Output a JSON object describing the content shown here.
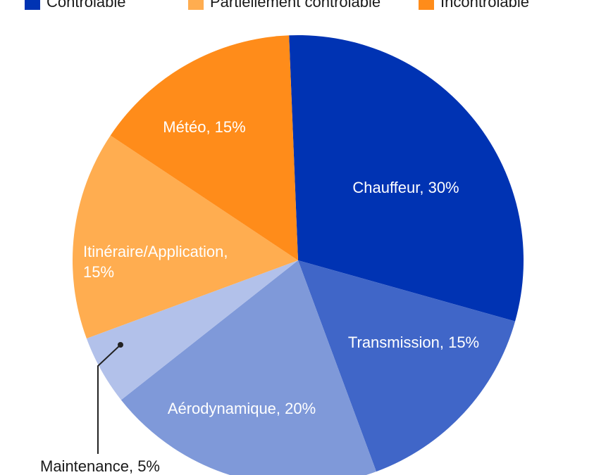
{
  "chart_data": {
    "type": "pie",
    "legend": [
      {
        "label": "Contrôlable",
        "color": "#0033b3"
      },
      {
        "label": "Partiellement contrôlable",
        "color": "#ffad50"
      },
      {
        "label": "Incontrôlable",
        "color": "#ff8c1a"
      }
    ],
    "values": [
      30,
      15,
      20,
      5,
      15,
      15
    ],
    "labels": [
      [
        "Chauffeur, 30%"
      ],
      [
        "Transmission, 15%"
      ],
      [
        "Aérodynamique, 20%"
      ],
      [
        "Maintenance, 5%"
      ],
      [
        "Itinéraire/Application,",
        "15%"
      ],
      [
        "Météo, 15%"
      ]
    ],
    "colors": [
      "#0033b3",
      "#4066c8",
      "#7f99d9",
      "#b2c1ea",
      "#ffad50",
      "#ff8c1a"
    ]
  }
}
